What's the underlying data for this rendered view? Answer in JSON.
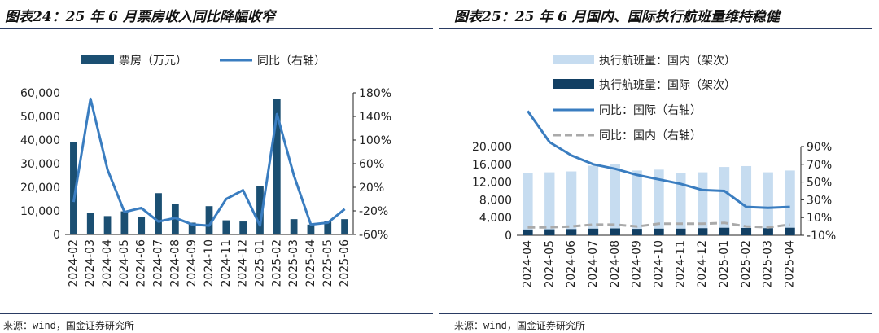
{
  "left": {
    "title": "图表24：25 年 6 月票房收入同比降幅收窄",
    "source": "来源：wind，国金证券研究所"
  },
  "right": {
    "title": "图表25：25 年 6 月国内、国际执行航班量维持稳健",
    "source": "来源：wind，国金证券研究所"
  },
  "chart_data": [
    {
      "type": "bar",
      "categories": [
        "2024-02",
        "2024-03",
        "2024-04",
        "2024-05",
        "2024-06",
        "2024-07",
        "2024-08",
        "2024-09",
        "2024-10",
        "2024-11",
        "2024-12",
        "2025-01",
        "2025-02",
        "2025-03",
        "2025-04",
        "2025-05",
        "2025-06"
      ],
      "series": [
        {
          "name": "票房（万元）",
          "type": "bar",
          "axis": "left",
          "color": "#1b4f72",
          "values": [
            39000,
            9000,
            7800,
            9800,
            7500,
            17500,
            13000,
            5000,
            12000,
            6000,
            5500,
            20500,
            57500,
            6500,
            4200,
            5800,
            6500
          ]
        },
        {
          "name": "同比（右轴）",
          "type": "line",
          "axis": "right",
          "color": "#3a7dc0",
          "values": [
            -5,
            170,
            50,
            -22,
            -15,
            -38,
            -32,
            -43,
            -45,
            0,
            15,
            -45,
            144,
            40,
            -43,
            -40,
            -17
          ]
        }
      ],
      "yleft": {
        "min": 0,
        "max": 60000,
        "ticks": [
          "0",
          "10,000",
          "20,000",
          "30,000",
          "40,000",
          "50,000",
          "60,000"
        ]
      },
      "yright": {
        "min": -60,
        "max": 180,
        "ticks": [
          "-60%",
          "-20%",
          "20%",
          "60%",
          "100%",
          "140%",
          "180%"
        ]
      },
      "legend": "top"
    },
    {
      "type": "bar",
      "categories": [
        "2024-04",
        "2024-05",
        "2024-06",
        "2024-07",
        "2024-08",
        "2024-09",
        "2024-10",
        "2024-11",
        "2024-12",
        "2025-01",
        "2025-02",
        "2025-03",
        "2025-04"
      ],
      "series": [
        {
          "name": "执行航班量：国内（架次）",
          "type": "bar",
          "axis": "left",
          "color": "#c6dcf0",
          "values": [
            14000,
            14200,
            14400,
            15700,
            16000,
            14600,
            14800,
            14000,
            14200,
            15400,
            15600,
            14200,
            14600
          ]
        },
        {
          "name": "执行航班量：国际（架次）",
          "type": "bar",
          "axis": "left",
          "color": "#123f63",
          "values": [
            1300,
            1350,
            1400,
            1500,
            1550,
            1450,
            1500,
            1500,
            1600,
            1700,
            1650,
            1600,
            1700
          ]
        },
        {
          "name": "同比：国际（右轴）",
          "type": "line",
          "axis": "right",
          "color": "#3a7dc0",
          "values": [
            130,
            95,
            80,
            70,
            65,
            58,
            53,
            48,
            41,
            40,
            22,
            21,
            22
          ]
        },
        {
          "name": "同比：国内（右轴）",
          "type": "dashed",
          "axis": "right",
          "color": "#aaaaaa",
          "values": [
            -1,
            -1,
            0,
            2,
            2,
            0,
            3,
            3,
            3,
            4,
            0,
            -1,
            2
          ]
        }
      ],
      "yleft": {
        "min": 0,
        "max": 20000,
        "ticks": [
          "0",
          "4,000",
          "8,000",
          "12,000",
          "16,000",
          "20,000"
        ]
      },
      "yright": {
        "min": -10,
        "max": 90,
        "ticks": [
          "-10%",
          "10%",
          "30%",
          "50%",
          "70%",
          "90%"
        ]
      },
      "legend": "top"
    }
  ]
}
